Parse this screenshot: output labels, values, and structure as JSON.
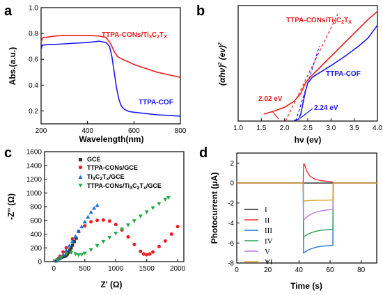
{
  "chart_data": [
    {
      "panel": "a",
      "type": "line",
      "xlabel": "Wavelength(nm)",
      "ylabel": "Abs.(a.u.)",
      "xlim": [
        200,
        800
      ],
      "ylim": [
        0.1,
        1.0
      ],
      "xticks": [
        "200",
        "400",
        "600",
        "800"
      ],
      "yticks": [
        "0.2",
        "0.4",
        "0.6",
        "0.8",
        "1.0"
      ],
      "series": [
        {
          "name": "TTPA-CONs/Ti3C2Tx",
          "color": "#ee1c1c",
          "x": [
            200,
            205,
            210,
            220,
            240,
            260,
            300,
            350,
            400,
            450,
            480,
            500,
            515,
            530,
            550,
            570,
            600,
            650,
            700,
            750,
            800
          ],
          "y": [
            0.73,
            0.76,
            0.77,
            0.77,
            0.775,
            0.78,
            0.785,
            0.785,
            0.785,
            0.78,
            0.77,
            0.72,
            0.66,
            0.62,
            0.6,
            0.585,
            0.56,
            0.53,
            0.5,
            0.48,
            0.46
          ]
        },
        {
          "name": "TTPA-COF",
          "color": "#1a1aee",
          "x": [
            200,
            205,
            210,
            230,
            260,
            300,
            350,
            400,
            450,
            480,
            495,
            505,
            515,
            525,
            535,
            545,
            560,
            580,
            600,
            650,
            700,
            750,
            800
          ],
          "y": [
            0.68,
            0.71,
            0.71,
            0.715,
            0.715,
            0.72,
            0.725,
            0.73,
            0.74,
            0.73,
            0.7,
            0.62,
            0.5,
            0.38,
            0.29,
            0.24,
            0.21,
            0.195,
            0.19,
            0.18,
            0.17,
            0.165,
            0.16
          ]
        }
      ],
      "annotations": [
        {
          "text": "TTPA-CONs/Ti",
          "sub": "3",
          "text2": "C",
          "sub2": "2",
          "text3": "T",
          "sub3": "x",
          "color": "#ee1c1c"
        },
        {
          "text": "TTPA-COF",
          "color": "#1a1aee"
        }
      ]
    },
    {
      "panel": "b",
      "type": "line",
      "xlabel": "hν (ev)",
      "ylabel": "(αhν)² (ev)²",
      "xlim": [
        1.0,
        4.0
      ],
      "ylim": [
        0,
        10
      ],
      "xticks": [
        "1.0",
        "1.5",
        "2.0",
        "2.5",
        "3.0",
        "3.5",
        "4.0"
      ],
      "series": [
        {
          "name": "TTPA-CONs/Ti3C2Tx",
          "color": "#ee1c1c",
          "x": [
            1.55,
            1.8,
            2.0,
            2.2,
            2.35,
            2.45,
            2.55,
            2.7,
            3.0,
            3.3,
            3.6,
            3.8,
            4.0
          ],
          "y": [
            0.6,
            0.9,
            1.2,
            1.7,
            2.4,
            3.3,
            3.8,
            4.4,
            5.6,
            6.8,
            8.0,
            8.8,
            9.5
          ]
        },
        {
          "name": "TTPA-COF",
          "color": "#1a1aee",
          "x": [
            2.2,
            2.3,
            2.35,
            2.4,
            2.45,
            2.5,
            2.6,
            2.8,
            3.0,
            3.3,
            3.6,
            3.8,
            4.0
          ],
          "y": [
            0.05,
            0.15,
            0.6,
            1.6,
            2.6,
            3.3,
            3.8,
            4.3,
            4.8,
            5.6,
            6.5,
            7.2,
            8.3
          ]
        }
      ],
      "tangents": [
        {
          "color": "#ee1c1c",
          "x": [
            2.02,
            3.15
          ],
          "y": [
            0,
            9.3
          ]
        },
        {
          "color": "#1a1aee",
          "x": [
            2.24,
            2.75
          ],
          "y": [
            0,
            6.5
          ]
        }
      ],
      "labels": [
        {
          "text": "TTPA-CONs/Ti",
          "sub": "3",
          "text2": "C",
          "sub2": "2",
          "text3": "T",
          "sub3": "x",
          "color": "#ee1c1c"
        },
        {
          "text": "TTPA-COF",
          "color": "#1a1aee"
        },
        {
          "text": "2.02 eV",
          "color": "#ee1c1c"
        },
        {
          "text": "2.24 eV",
          "color": "#1a1aee"
        }
      ]
    },
    {
      "panel": "c",
      "type": "scatter",
      "xlabel": "Z' (Ω)",
      "ylabel": "-Z'' (Ω)",
      "xlim": [
        -150,
        2100
      ],
      "ylim": [
        0,
        1600
      ],
      "xticks": [
        "0",
        "500",
        "1000",
        "1500",
        "2000"
      ],
      "yticks": [
        "0",
        "200",
        "400",
        "600",
        "800",
        "1000",
        "1200",
        "1400",
        "1600"
      ],
      "legend_position": "top-left",
      "series": [
        {
          "name": "GCE",
          "marker": "square",
          "color": "#333333",
          "x": [
            40,
            60,
            80,
            100,
            120,
            140,
            160,
            180,
            200,
            220,
            240,
            260,
            280,
            300,
            330,
            360
          ],
          "y": [
            10,
            25,
            40,
            55,
            65,
            70,
            75,
            80,
            90,
            110,
            140,
            170,
            200,
            240,
            290,
            340
          ]
        },
        {
          "name": "TTPA-CONs/GCE",
          "marker": "circle",
          "color": "#ee1c1c",
          "x": [
            60,
            100,
            150,
            200,
            300,
            400,
            500,
            600,
            700,
            800,
            900,
            1000,
            1100,
            1200,
            1300,
            1400,
            1450,
            1500,
            1550,
            1600,
            1700,
            1800,
            1900,
            2000
          ],
          "y": [
            30,
            80,
            140,
            200,
            330,
            440,
            520,
            580,
            600,
            605,
            590,
            540,
            460,
            360,
            250,
            150,
            110,
            100,
            110,
            140,
            220,
            300,
            400,
            510
          ]
        },
        {
          "name": "Ti3C2Tx/GCE",
          "marker": "triangle-up",
          "color": "#1a6ee8",
          "x": [
            60,
            100,
            150,
            200,
            250,
            300,
            350,
            400,
            450,
            500,
            550,
            600,
            650,
            700
          ],
          "y": [
            20,
            50,
            100,
            160,
            230,
            300,
            370,
            440,
            510,
            580,
            650,
            720,
            780,
            820
          ]
        },
        {
          "name": "TTPA-CONs/Ti3C2Tx/GCE",
          "marker": "triangle-down",
          "color": "#22aa44",
          "x": [
            60,
            120,
            200,
            280,
            350,
            400,
            450,
            500,
            600,
            700,
            800,
            900,
            1000,
            1100,
            1200,
            1300,
            1400,
            1500,
            1600,
            1700,
            1800,
            1850
          ],
          "y": [
            20,
            60,
            110,
            130,
            110,
            95,
            100,
            120,
            170,
            230,
            290,
            350,
            410,
            470,
            530,
            590,
            660,
            720,
            780,
            840,
            900,
            930
          ]
        }
      ]
    },
    {
      "panel": "d",
      "type": "line",
      "xlabel": "Time (s)",
      "ylabel": "Photocurrent (μA)",
      "xlim": [
        0,
        90
      ],
      "ylim": [
        -8,
        3
      ],
      "xticks": [
        "0",
        "20",
        "40",
        "60",
        "80"
      ],
      "yticks": [
        "-8",
        "-6",
        "-4",
        "-2",
        "0",
        "2"
      ],
      "legend_position": "left",
      "on_time": 43,
      "off_time": 62,
      "series": [
        {
          "name": "I",
          "color": "#222222",
          "on_start": 0.0,
          "on_end": 0.0
        },
        {
          "name": "II",
          "color": "#ee3333",
          "on_start": 1.9,
          "on_end": 0.1
        },
        {
          "name": "III",
          "color": "#1f77d4",
          "on_start": -7.0,
          "on_end": -6.2
        },
        {
          "name": "IV",
          "color": "#27a05a",
          "on_start": -5.4,
          "on_end": -4.6
        },
        {
          "name": "V",
          "color": "#b57ad8",
          "on_start": -3.7,
          "on_end": -2.6
        },
        {
          "name": "VI",
          "color": "#e09a1a",
          "on_start": -1.8,
          "on_end": -1.7
        }
      ]
    }
  ],
  "panel_labels": [
    "a",
    "b",
    "c",
    "d"
  ],
  "chart_text": {
    "a_xlabel": "Wavelength(nm)",
    "a_ylabel": "Abs.(a.u.)",
    "a_ann_red_main": "TTPA-CONs/Ti",
    "a_ann_red_s1": "3",
    "a_ann_red_m2": "C",
    "a_ann_red_s2": "2",
    "a_ann_red_m3": "T",
    "a_ann_red_s3": "X",
    "a_ann_blue": "TTPA-COF",
    "b_xlabel": "hν (ev)",
    "b_ylabel": "(αhν)",
    "b_ylabel_sup": "2",
    "b_ylabel_rest": " (ev)",
    "b_ylabel_sup2": "2",
    "b_ann_red_main": "TTPA-CONs/Ti",
    "b_ann_red_s1": "3",
    "b_ann_red_m2": "C",
    "b_ann_red_s2": "2",
    "b_ann_red_m3": "T",
    "b_ann_red_s3": "X",
    "b_ann_blue": "TTPA-COF",
    "b_ann_e1": "2.02 eV",
    "b_ann_e2": "2.24 eV",
    "c_xlabel": "Z' (Ω)",
    "c_ylabel": "-Z'' (Ω)",
    "c_leg1": "GCE",
    "c_leg2": "TTPA-CONs/GCE",
    "c_leg3_a": "Ti",
    "c_leg3_s1": "3",
    "c_leg3_b": "C",
    "c_leg3_s2": "2",
    "c_leg3_c": "T",
    "c_leg3_s3": "x",
    "c_leg3_d": "/GCE",
    "c_leg4_a": "TTPA-CONs/Ti",
    "c_leg4_s1": "3",
    "c_leg4_b": "C",
    "c_leg4_s2": "2",
    "c_leg4_c": "T",
    "c_leg4_s3": "x",
    "c_leg4_d": "/GCE",
    "d_xlabel": "Time (s)",
    "d_ylabel": "Photocurrent (μA)"
  }
}
